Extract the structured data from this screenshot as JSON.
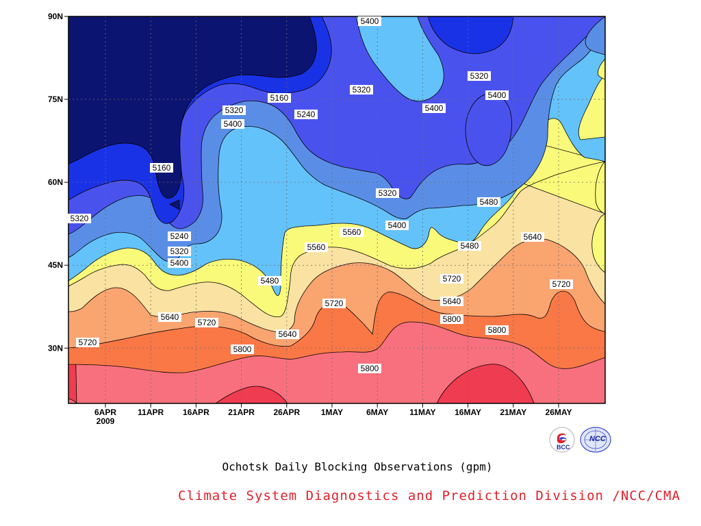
{
  "chart_data": {
    "type": "heatmap",
    "caption": "Ochotsk Daily Blocking Observations (gpm)",
    "x_ticks": [
      "6APR",
      "11APR",
      "16APR",
      "21APR",
      "26APR",
      "1MAY",
      "6MAY",
      "11MAY",
      "16MAY",
      "21MAY",
      "26MAY"
    ],
    "x_year": "2009",
    "y_ticks": [
      "30N",
      "45N",
      "60N",
      "75N",
      "90N"
    ],
    "ylim": [
      20,
      90
    ],
    "contour_levels": [
      5160,
      5240,
      5320,
      5400,
      5480,
      5560,
      5640,
      5720,
      5800
    ],
    "colors": [
      "#0c1472",
      "#1a32e6",
      "#4a52ee",
      "#5a8ee6",
      "#64c2fa",
      "#fafa7a",
      "#fae2a2",
      "#faa470",
      "#fa7846",
      "#f8707e",
      "#f03c50"
    ],
    "contour_labels": [
      {
        "value": "5400"
      },
      {
        "value": "5320"
      },
      {
        "value": "5320"
      },
      {
        "value": "5160"
      },
      {
        "value": "5240"
      },
      {
        "value": "5320"
      },
      {
        "value": "5400"
      },
      {
        "value": "5400"
      },
      {
        "value": "5160"
      },
      {
        "value": "5320"
      },
      {
        "value": "5400"
      },
      {
        "value": "5320"
      },
      {
        "value": "5240"
      },
      {
        "value": "5320"
      },
      {
        "value": "5400"
      },
      {
        "value": "5480"
      },
      {
        "value": "5400"
      },
      {
        "value": "5560"
      },
      {
        "value": "5480"
      },
      {
        "value": "5640"
      },
      {
        "value": "5560"
      },
      {
        "value": "5480"
      },
      {
        "value": "5720"
      },
      {
        "value": "5640"
      },
      {
        "value": "5720"
      },
      {
        "value": "5640"
      },
      {
        "value": "5720"
      },
      {
        "value": "5800"
      },
      {
        "value": "5720"
      },
      {
        "value": "5640"
      },
      {
        "value": "5720"
      },
      {
        "value": "5800"
      },
      {
        "value": "5800"
      },
      {
        "value": "5800"
      }
    ]
  },
  "footer": {
    "credit": "Climate System Diagnostics and Prediction Division /NCC/CMA",
    "logo_left": "BCC",
    "logo_right": "NCC"
  }
}
